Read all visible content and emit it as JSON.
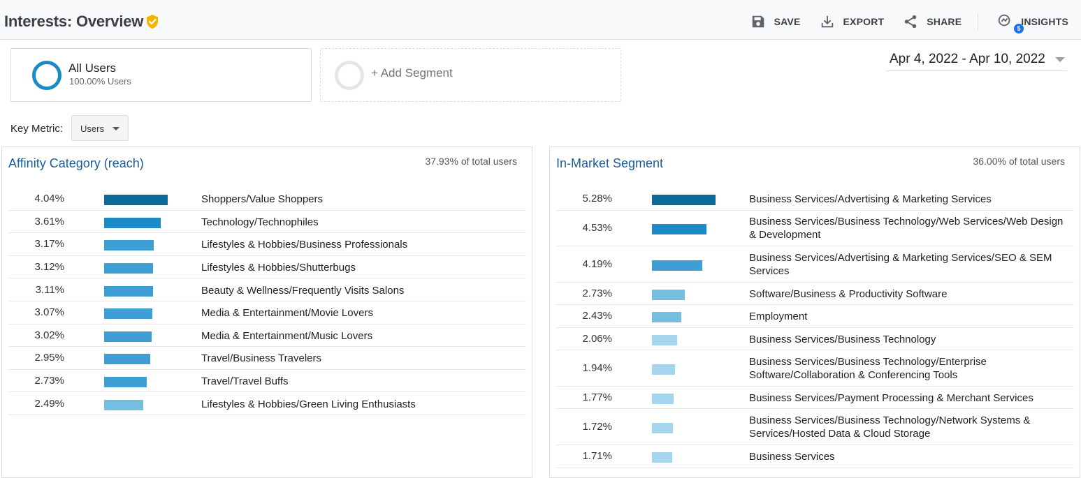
{
  "header": {
    "title": "Interests: Overview",
    "actions": {
      "save": "SAVE",
      "export": "EXPORT",
      "share": "SHARE",
      "insights": "INSIGHTS",
      "insights_badge": "5"
    }
  },
  "segments": {
    "all_users": {
      "name": "All Users",
      "sub": "100.00% Users"
    },
    "add": {
      "label": "+ Add Segment"
    }
  },
  "date_range": "Apr 4, 2022 - Apr 10, 2022",
  "key_metric": {
    "label": "Key Metric:",
    "value": "Users"
  },
  "colors": {
    "bar_dark": "#0b6a99",
    "bar_mid": "#1b8ac6",
    "bar_light": "#3d9fd4",
    "bar_pale": "#74bfe1",
    "bar_palest": "#a5d5ee",
    "title_blue": "#1a5d9b"
  },
  "affinity": {
    "title": "Affinity Category (reach)",
    "total": "37.93% of total users",
    "rows": [
      {
        "pct": "4.04%",
        "value": 4.04,
        "label": "Shoppers/Value Shoppers"
      },
      {
        "pct": "3.61%",
        "value": 3.61,
        "label": "Technology/Technophiles"
      },
      {
        "pct": "3.17%",
        "value": 3.17,
        "label": "Lifestyles & Hobbies/Business Professionals"
      },
      {
        "pct": "3.12%",
        "value": 3.12,
        "label": "Lifestyles & Hobbies/Shutterbugs"
      },
      {
        "pct": "3.11%",
        "value": 3.11,
        "label": "Beauty & Wellness/Frequently Visits Salons"
      },
      {
        "pct": "3.07%",
        "value": 3.07,
        "label": "Media & Entertainment/Movie Lovers"
      },
      {
        "pct": "3.02%",
        "value": 3.02,
        "label": "Media & Entertainment/Music Lovers"
      },
      {
        "pct": "2.95%",
        "value": 2.95,
        "label": "Travel/Business Travelers"
      },
      {
        "pct": "2.73%",
        "value": 2.73,
        "label": "Travel/Travel Buffs"
      },
      {
        "pct": "2.49%",
        "value": 2.49,
        "label": "Lifestyles & Hobbies/Green Living Enthusiasts"
      }
    ]
  },
  "in_market": {
    "title": "In-Market Segment",
    "total": "36.00% of total users",
    "rows": [
      {
        "pct": "5.28%",
        "value": 5.28,
        "label": "Business Services/Advertising & Marketing Services"
      },
      {
        "pct": "4.53%",
        "value": 4.53,
        "label": "Business Services/Business Technology/Web Services/Web Design & Development"
      },
      {
        "pct": "4.19%",
        "value": 4.19,
        "label": "Business Services/Advertising & Marketing Services/SEO & SEM Services"
      },
      {
        "pct": "2.73%",
        "value": 2.73,
        "label": "Software/Business & Productivity Software"
      },
      {
        "pct": "2.43%",
        "value": 2.43,
        "label": "Employment"
      },
      {
        "pct": "2.06%",
        "value": 2.06,
        "label": "Business Services/Business Technology"
      },
      {
        "pct": "1.94%",
        "value": 1.94,
        "label": "Business Services/Business Technology/Enterprise Software/Collaboration & Conferencing Tools"
      },
      {
        "pct": "1.77%",
        "value": 1.77,
        "label": "Business Services/Payment Processing & Merchant Services"
      },
      {
        "pct": "1.72%",
        "value": 1.72,
        "label": "Business Services/Business Technology/Network Systems & Services/Hosted Data & Cloud Storage"
      },
      {
        "pct": "1.71%",
        "value": 1.71,
        "label": "Business Services"
      }
    ]
  }
}
